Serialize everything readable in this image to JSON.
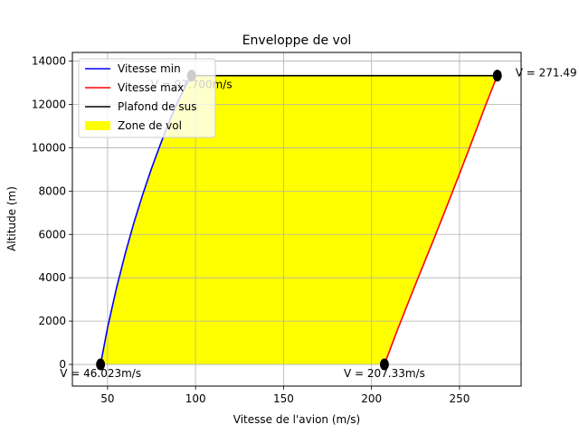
{
  "chart_data": {
    "type": "area",
    "title": "Enveloppe de vol",
    "xlabel": "Vitesse de l'avion (m/s)",
    "ylabel": "Altitude (m)",
    "xlim": [
      30,
      285
    ],
    "ylim": [
      -1000,
      14400
    ],
    "xticks": [
      50,
      100,
      150,
      200,
      250
    ],
    "yticks": [
      0,
      2000,
      4000,
      6000,
      8000,
      10000,
      12000,
      14000
    ],
    "grid": true,
    "legend_position": "top-left",
    "series": [
      {
        "name": "Vitesse min",
        "color": "#0000ff",
        "x": [
          46.023,
          50,
          55,
          60,
          65,
          70,
          75,
          80,
          85,
          90,
          95,
          97.7
        ],
        "y": [
          0,
          1700,
          3500,
          5100,
          6550,
          7850,
          9050,
          10150,
          11200,
          12150,
          12950,
          13330
        ]
      },
      {
        "name": "Vitesse max",
        "color": "#ff0000",
        "x": [
          207.33,
          215,
          225,
          235,
          245,
          255,
          265,
          271.49
        ],
        "y": [
          0,
          1650,
          3700,
          5700,
          7750,
          9850,
          12000,
          13330
        ]
      },
      {
        "name": "Plafond de sus",
        "color": "#000000",
        "x": [
          97.7,
          271.49
        ],
        "y": [
          13330,
          13330
        ]
      },
      {
        "name": "Zone de vol",
        "color": "#ffff00"
      }
    ],
    "points": [
      {
        "x": 46.023,
        "y": 0
      },
      {
        "x": 97.7,
        "y": 13330
      },
      {
        "x": 207.33,
        "y": 0
      },
      {
        "x": 271.49,
        "y": 13330
      }
    ],
    "annotations": [
      {
        "text": "V = 46.023m/s",
        "x": 46.023,
        "y": 0,
        "anchor": "below-center"
      },
      {
        "text": "V = 207.33m/s",
        "x": 207.33,
        "y": 0,
        "anchor": "below-center"
      },
      {
        "text": "V = 271.49",
        "x": 271.49,
        "y": 13330,
        "anchor": "right"
      },
      {
        "text": "V = 97.700m/s",
        "x": 97.7,
        "y": 13330,
        "anchor": "below-center"
      }
    ]
  }
}
